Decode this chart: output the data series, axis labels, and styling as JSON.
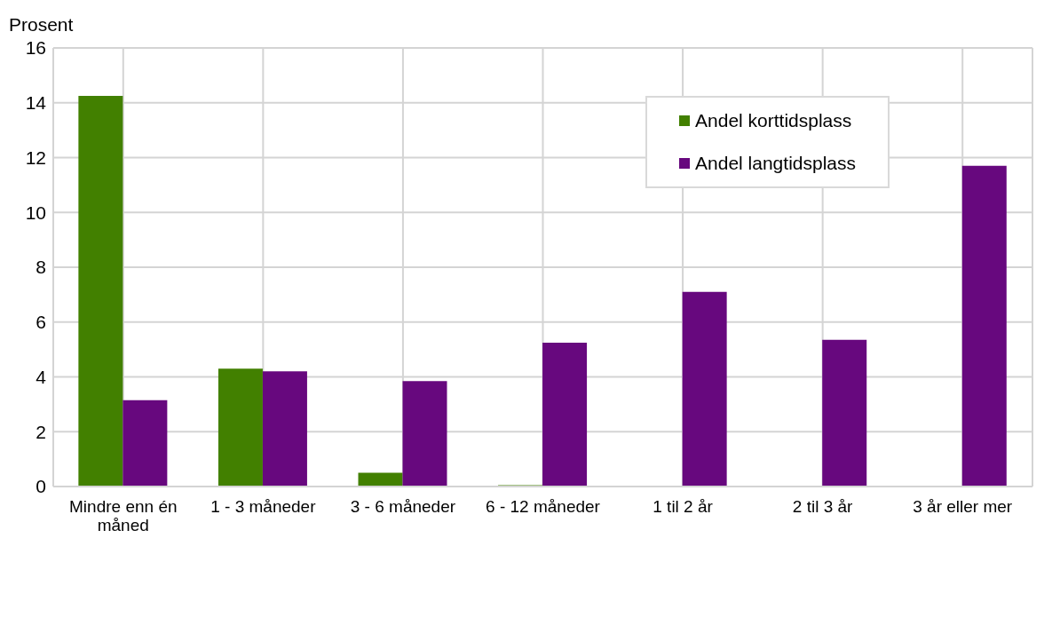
{
  "chart_data": {
    "type": "bar",
    "ylabel": "Prosent",
    "categories": [
      "Mindre enn én måned",
      "1 - 3 måneder",
      "3 - 6 måneder",
      "6 - 12 måneder",
      "1 til 2 år",
      "2 til 3 år",
      "3 år eller mer"
    ],
    "series": [
      {
        "name": "Andel korttidsplass",
        "color": "#428000",
        "values": [
          14.25,
          4.3,
          0.5,
          0.05,
          0,
          0,
          0
        ]
      },
      {
        "name": "Andel langtidsplass",
        "color": "#67087e",
        "values": [
          3.15,
          4.2,
          3.85,
          5.25,
          7.1,
          5.35,
          11.7
        ]
      }
    ],
    "ylim": [
      0,
      16
    ],
    "yticks": [
      0,
      2,
      4,
      6,
      8,
      10,
      12,
      14,
      16
    ],
    "grid": true,
    "legend": "top right"
  }
}
